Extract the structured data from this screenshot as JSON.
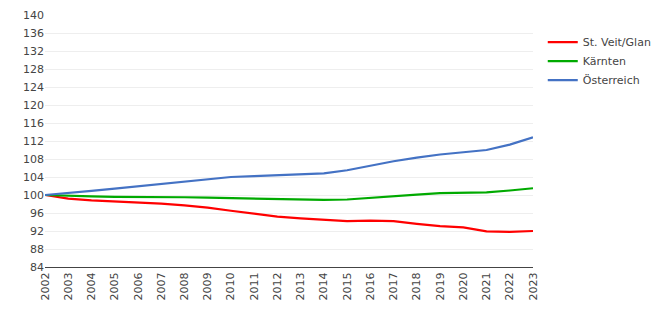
{
  "chart_data": {
    "type": "line",
    "x": [
      2002,
      2003,
      2004,
      2005,
      2006,
      2007,
      2008,
      2009,
      2010,
      2011,
      2012,
      2013,
      2014,
      2015,
      2016,
      2017,
      2018,
      2019,
      2020,
      2021,
      2022,
      2023
    ],
    "series": [
      {
        "name": "St. Veit/Glan",
        "color": "#ff0000",
        "values": [
          100.0,
          99.2,
          98.8,
          98.6,
          98.4,
          98.1,
          97.7,
          97.2,
          96.5,
          95.8,
          95.2,
          94.8,
          94.5,
          94.2,
          94.3,
          94.2,
          93.6,
          93.1,
          92.8,
          91.9,
          91.8,
          92.0
        ]
      },
      {
        "name": "Kärnten",
        "color": "#00aa00",
        "values": [
          100.0,
          99.8,
          99.7,
          99.6,
          99.6,
          99.5,
          99.5,
          99.4,
          99.3,
          99.2,
          99.1,
          99.0,
          98.9,
          99.0,
          99.4,
          99.8,
          100.1,
          100.4,
          100.5,
          100.6,
          101.0,
          101.5
        ]
      },
      {
        "name": "Österreich",
        "color": "#4472c4",
        "values": [
          100.0,
          100.4,
          100.9,
          101.4,
          101.9,
          102.4,
          103.0,
          103.5,
          104.0,
          104.2,
          104.4,
          104.5,
          104.8,
          105.5,
          106.5,
          107.5,
          108.3,
          109.0,
          109.5,
          110.0,
          111.2,
          112.8
        ]
      }
    ],
    "xlim": [
      2002,
      2023
    ],
    "xticks": [
      2002,
      2003,
      2004,
      2005,
      2006,
      2007,
      2008,
      2009,
      2010,
      2011,
      2012,
      2013,
      2014,
      2015,
      2016,
      2017,
      2018,
      2019,
      2020,
      2021,
      2022,
      2023
    ],
    "ylim": [
      84,
      140
    ],
    "yticks": [
      84,
      88,
      92,
      96,
      100,
      104,
      108,
      112,
      116,
      120,
      124,
      128,
      132,
      136,
      140
    ],
    "grid": "y",
    "legend": "right"
  }
}
